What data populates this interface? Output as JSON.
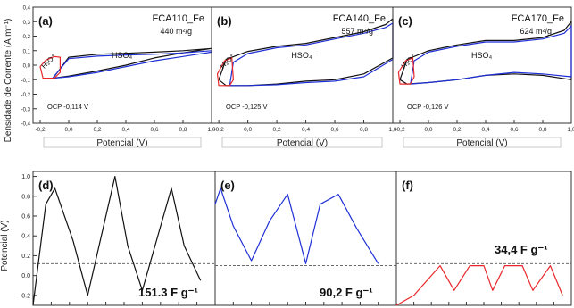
{
  "top_ylabel": "Densidade de Corrente (A m⁻¹)",
  "bottom_ylabel": "Potencial (V)",
  "colors": {
    "black": "#111111",
    "blue": "#1f2fd6",
    "red": "#e8262a",
    "dash": "#555555"
  },
  "chart_data": [
    {
      "type": "line",
      "panel": "(a)",
      "title": "FCA110_Fe",
      "subtitle": "440 m²/g",
      "xlabel": "Potencial (V)",
      "ylabel": "Densidade de Corrente (A m⁻¹)",
      "xlim": [
        -0.25,
        1.0
      ],
      "ylim": [
        -0.4,
        0.4
      ],
      "x_ticks": [
        "-0,2",
        "0,0",
        "0,2",
        "0,4",
        "0,6",
        "0,8",
        "1,0"
      ],
      "y_ticks": [
        "-0,4",
        "-0,3",
        "-0,2",
        "-0,1",
        "0,0",
        "0,1",
        "0,2",
        "0,3",
        "0,4"
      ],
      "annotations": {
        "h3o": "H₃O⁺",
        "hso4": "HSO₄⁻",
        "ocp": "OCP -0,114 V"
      },
      "series": [
        {
          "color": "#111111",
          "x": [
            -0.11,
            0.0,
            0.2,
            0.4,
            0.6,
            0.8,
            1.0,
            1.0,
            0.8,
            0.6,
            0.4,
            0.2,
            0.0,
            -0.11,
            -0.11
          ],
          "y": [
            -0.09,
            0.055,
            0.075,
            0.082,
            0.09,
            0.1,
            0.115,
            0.115,
            0.085,
            0.05,
            0.0,
            -0.04,
            -0.075,
            -0.09,
            -0.09
          ]
        },
        {
          "color": "#1f2fd6",
          "x": [
            -0.114,
            0.0,
            0.2,
            0.4,
            0.6,
            0.8,
            1.0,
            1.0,
            0.8,
            0.6,
            0.4,
            0.2,
            0.0,
            -0.114
          ],
          "y": [
            -0.09,
            0.045,
            0.062,
            0.07,
            0.075,
            0.085,
            0.1,
            0.09,
            0.06,
            0.03,
            -0.01,
            -0.05,
            -0.08,
            -0.09
          ]
        },
        {
          "color": "#e8262a",
          "x": [
            -0.114,
            -0.18,
            -0.2,
            -0.16,
            -0.1,
            -0.06,
            -0.06,
            -0.1,
            -0.114
          ],
          "y": [
            -0.09,
            -0.09,
            -0.01,
            0.035,
            0.06,
            0.055,
            -0.05,
            -0.09,
            -0.09
          ]
        }
      ]
    },
    {
      "type": "line",
      "panel": "(b)",
      "title": "FCA140_Fe",
      "subtitle": "557 m²/g",
      "xlabel": "Potencial (V)",
      "xlim": [
        -0.25,
        1.0
      ],
      "ylim": [
        -0.4,
        0.4
      ],
      "x_ticks": [
        "-0,2",
        "0,0",
        "0,2",
        "0,4",
        "0,6",
        "0,8",
        "1,0"
      ],
      "annotations": {
        "h3o": "H₃O⁺",
        "hso4": "HSO₄⁻",
        "ocp": "OCP -0,125 V"
      },
      "series": [
        {
          "color": "#111111",
          "x": [
            -0.2,
            -0.15,
            0.0,
            0.2,
            0.4,
            0.6,
            0.8,
            0.95,
            1.0,
            1.0,
            0.8,
            0.6,
            0.4,
            0.2,
            0.0,
            -0.15,
            -0.2
          ],
          "y": [
            -0.1,
            0.04,
            0.095,
            0.13,
            0.15,
            0.19,
            0.23,
            0.28,
            0.32,
            0.05,
            -0.06,
            -0.1,
            -0.11,
            -0.13,
            -0.14,
            -0.14,
            -0.1
          ]
        },
        {
          "color": "#1f2fd6",
          "x": [
            -0.125,
            -0.1,
            0.0,
            0.2,
            0.4,
            0.6,
            0.8,
            0.95,
            1.0,
            1.0,
            0.8,
            0.6,
            0.4,
            0.2,
            0.0,
            -0.125
          ],
          "y": [
            -0.14,
            0.02,
            0.08,
            0.12,
            0.14,
            0.18,
            0.22,
            0.26,
            0.29,
            0.04,
            -0.08,
            -0.11,
            -0.12,
            -0.135,
            -0.14,
            -0.14
          ]
        },
        {
          "color": "#e8262a",
          "x": [
            -0.125,
            -0.2,
            -0.21,
            -0.16,
            -0.11,
            -0.1,
            -0.125
          ],
          "y": [
            -0.14,
            -0.14,
            -0.06,
            0.03,
            0.05,
            -0.1,
            -0.14
          ]
        }
      ]
    },
    {
      "type": "line",
      "panel": "(c)",
      "title": "FCA170_Fe",
      "subtitle": "624 m²/g",
      "xlabel": "Potencial (V)",
      "xlim": [
        -0.25,
        1.0
      ],
      "ylim": [
        -0.4,
        0.4
      ],
      "x_ticks": [
        "-0,2",
        "0,0",
        "0,2",
        "0,4",
        "0,6",
        "0,8",
        "1,0"
      ],
      "annotations": {
        "h3o": "H₃O⁺",
        "hso4": "HSO₄⁻",
        "ocp": "OCP -0,126 V"
      },
      "series": [
        {
          "color": "#111111",
          "x": [
            -0.2,
            -0.15,
            0.0,
            0.2,
            0.4,
            0.6,
            0.8,
            0.95,
            1.0,
            1.0,
            0.8,
            0.6,
            0.4,
            0.2,
            0.0,
            -0.15,
            -0.2
          ],
          "y": [
            -0.1,
            0.04,
            0.1,
            0.14,
            0.17,
            0.17,
            0.19,
            0.24,
            0.3,
            -0.1,
            -0.07,
            -0.06,
            -0.07,
            -0.1,
            -0.12,
            -0.13,
            -0.1
          ]
        },
        {
          "color": "#1f2fd6",
          "x": [
            -0.126,
            -0.1,
            0.0,
            0.2,
            0.4,
            0.6,
            0.8,
            0.95,
            1.0,
            1.0,
            0.8,
            0.6,
            0.4,
            0.2,
            0.0,
            -0.126
          ],
          "y": [
            -0.13,
            0.03,
            0.09,
            0.13,
            0.16,
            0.16,
            0.18,
            0.22,
            0.27,
            -0.08,
            -0.06,
            -0.05,
            -0.07,
            -0.1,
            -0.12,
            -0.13
          ]
        },
        {
          "color": "#e8262a",
          "x": [
            -0.126,
            -0.2,
            -0.21,
            -0.16,
            -0.11,
            -0.1,
            -0.126
          ],
          "y": [
            -0.13,
            -0.13,
            -0.05,
            0.03,
            0.05,
            -0.08,
            -0.13
          ]
        }
      ]
    },
    {
      "type": "line",
      "panel": "(d)",
      "ylabel": "Potencial (V)",
      "xlim": [
        0,
        100
      ],
      "ylim": [
        -0.3,
        1.05
      ],
      "y_ticks": [
        "-0.2",
        "0.0",
        "0.2",
        "0.4",
        "0.6",
        "0.8",
        "1.0"
      ],
      "reference_line": 0.12,
      "capacitance_label": "151.3 F g⁻¹",
      "series": [
        {
          "color": "#111111",
          "x": [
            0,
            7,
            12,
            22,
            30,
            45,
            52,
            60,
            76,
            83,
            92
          ],
          "y": [
            -0.3,
            0.72,
            0.88,
            0.35,
            -0.2,
            1.0,
            0.3,
            -0.15,
            0.88,
            0.3,
            -0.05
          ]
        }
      ]
    },
    {
      "type": "line",
      "panel": "(e)",
      "xlim": [
        0,
        100
      ],
      "ylim": [
        -0.3,
        1.05
      ],
      "reference_line": 0.1,
      "capacitance_label": "90,2 F g⁻¹",
      "series": [
        {
          "color": "#1f2fd6",
          "x": [
            0,
            3,
            10,
            20,
            30,
            40,
            50,
            58,
            68,
            78,
            90
          ],
          "y": [
            0.72,
            0.88,
            0.5,
            0.15,
            0.55,
            0.82,
            0.12,
            0.72,
            0.82,
            0.48,
            0.12
          ]
        }
      ]
    },
    {
      "type": "line",
      "panel": "(f)",
      "xlim": [
        0,
        100
      ],
      "ylim": [
        -0.3,
        1.05
      ],
      "reference_line": 0.12,
      "capacitance_label": "34,4 F g⁻¹",
      "series": [
        {
          "color": "#e8262a",
          "x": [
            0,
            10,
            25,
            33,
            42,
            50,
            55,
            62,
            72,
            78,
            88,
            95
          ],
          "y": [
            -0.3,
            -0.2,
            0.1,
            -0.15,
            0.1,
            0.1,
            -0.15,
            0.1,
            0.1,
            -0.15,
            0.1,
            -0.2
          ]
        }
      ]
    }
  ]
}
